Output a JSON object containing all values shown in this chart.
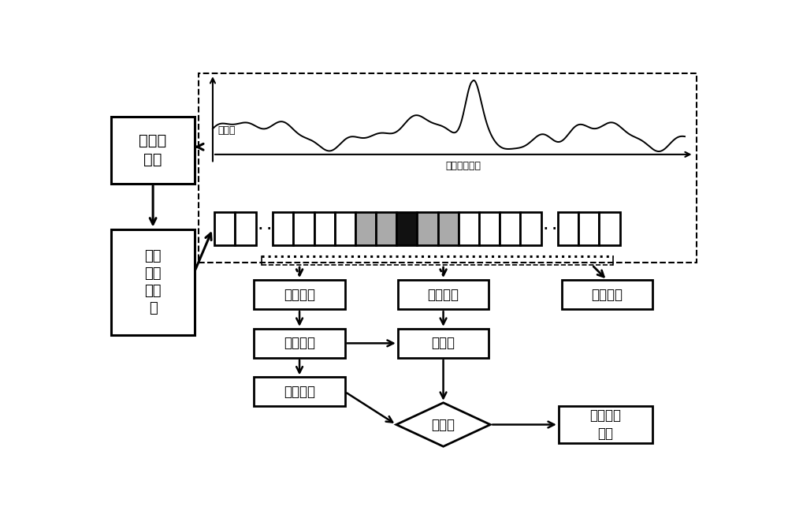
{
  "fig_width": 10.0,
  "fig_height": 6.57,
  "bg_color": "#ffffff",
  "lw": 1.8,
  "labels": {
    "fu_he_jian_ce": "符合值\n检测",
    "jian_ce_dan_yuan_jue_ce_qi": "检测\n单元\n判决\n器",
    "can_kao_dan_yuan": "参考单元",
    "jian_ce_dan_yuan": "检测单元",
    "bao_hu_dan_yuan": "保护单元",
    "zao_sheng_gu_ji": "噪声估计",
    "bi_jiao_qi": "比较器",
    "men_xian_ji_suan": "门限计算",
    "jue_ce_qi": "判决器",
    "shu_chu_jue_ce_jie_guo": "输出判决\n结果",
    "fu_he_zhi": "符合值",
    "shi_jian_yan_chi_chuang_kou": "时间延迟窗口"
  }
}
